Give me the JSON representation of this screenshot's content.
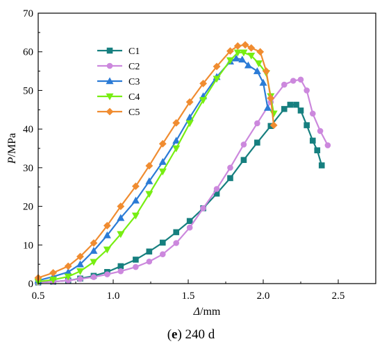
{
  "chart_data": {
    "type": "line",
    "caption_prefix": "(",
    "caption_bold": "e",
    "caption_suffix": ") 240 d",
    "xlabel_italic": "Δ",
    "xlabel_unit": "/mm",
    "ylabel_italic": "P",
    "ylabel_unit": "/MPa",
    "xlim": [
      0.5,
      2.75
    ],
    "ylim": [
      0,
      70
    ],
    "xticks": [
      0.5,
      1.0,
      1.5,
      2.0,
      2.5
    ],
    "xtick_labels": [
      "0.5",
      "1.0",
      "1.5",
      "2.0",
      "2.5"
    ],
    "yticks": [
      0,
      10,
      20,
      30,
      40,
      50,
      60,
      70
    ],
    "ytick_labels": [
      "0",
      "10",
      "20",
      "30",
      "40",
      "50",
      "60",
      "70"
    ],
    "legend_position": "upper-left",
    "series": [
      {
        "name": "C1",
        "color": "#167f7f",
        "marker": "square",
        "x": [
          0.5,
          0.6,
          0.7,
          0.78,
          0.87,
          0.96,
          1.05,
          1.15,
          1.24,
          1.33,
          1.42,
          1.51,
          1.6,
          1.69,
          1.78,
          1.87,
          1.96,
          2.05,
          2.14,
          2.18,
          2.22,
          2.25,
          2.29,
          2.33,
          2.36,
          2.39
        ],
        "y": [
          0.3,
          0.5,
          0.8,
          1.3,
          2.0,
          3.0,
          4.5,
          6.2,
          8.3,
          10.6,
          13.3,
          16.2,
          19.5,
          23.3,
          27.3,
          32.0,
          36.5,
          40.8,
          45.2,
          46.3,
          46.3,
          44.8,
          41.0,
          37.0,
          34.5,
          30.6
        ]
      },
      {
        "name": "C2",
        "color": "#cc88dd",
        "marker": "circle",
        "x": [
          0.5,
          0.6,
          0.7,
          0.78,
          0.87,
          0.96,
          1.05,
          1.15,
          1.24,
          1.33,
          1.42,
          1.51,
          1.6,
          1.69,
          1.78,
          1.87,
          1.96,
          2.05,
          2.14,
          2.2,
          2.25,
          2.29,
          2.33,
          2.38,
          2.43
        ],
        "y": [
          0.3,
          0.5,
          0.8,
          1.2,
          1.7,
          2.4,
          3.2,
          4.3,
          5.7,
          7.6,
          10.5,
          14.5,
          19.5,
          24.5,
          30.0,
          36.0,
          41.5,
          47.0,
          51.5,
          52.5,
          52.8,
          50.0,
          44.0,
          39.5,
          35.8
        ]
      },
      {
        "name": "C3",
        "color": "#2b7bd6",
        "marker": "triangle-up",
        "x": [
          0.5,
          0.6,
          0.7,
          0.78,
          0.87,
          0.96,
          1.05,
          1.15,
          1.24,
          1.33,
          1.42,
          1.51,
          1.6,
          1.69,
          1.78,
          1.82,
          1.86,
          1.9,
          1.96,
          2.0,
          2.03
        ],
        "y": [
          0.8,
          1.8,
          3.0,
          5.0,
          8.5,
          12.5,
          17.0,
          21.5,
          26.5,
          31.5,
          37.0,
          43.0,
          48.5,
          53.5,
          57.5,
          58.3,
          58.0,
          56.5,
          55.0,
          52.0,
          45.5
        ]
      },
      {
        "name": "C4",
        "color": "#77ee11",
        "marker": "triangle-down",
        "x": [
          0.5,
          0.6,
          0.7,
          0.78,
          0.87,
          0.96,
          1.05,
          1.15,
          1.24,
          1.33,
          1.42,
          1.51,
          1.6,
          1.69,
          1.78,
          1.83,
          1.87,
          1.92,
          1.97,
          2.02,
          2.05,
          2.07
        ],
        "y": [
          0.5,
          1.0,
          1.8,
          3.2,
          5.6,
          8.8,
          12.8,
          17.6,
          23.2,
          29.0,
          35.0,
          41.5,
          47.5,
          53.0,
          57.8,
          59.8,
          59.8,
          59.0,
          57.0,
          54.5,
          48.5,
          44.0
        ]
      },
      {
        "name": "C5",
        "color": "#f08c30",
        "marker": "diamond",
        "x": [
          0.5,
          0.6,
          0.7,
          0.78,
          0.87,
          0.96,
          1.05,
          1.15,
          1.24,
          1.33,
          1.42,
          1.51,
          1.6,
          1.69,
          1.78,
          1.83,
          1.88,
          1.92,
          1.98,
          2.02,
          2.05,
          2.07
        ],
        "y": [
          1.5,
          2.8,
          4.5,
          7.0,
          10.5,
          15.0,
          20.0,
          25.2,
          30.5,
          36.2,
          41.6,
          47.0,
          51.8,
          56.2,
          60.2,
          61.5,
          61.8,
          61.0,
          60.0,
          55.0,
          48.0,
          41.0
        ]
      }
    ]
  }
}
